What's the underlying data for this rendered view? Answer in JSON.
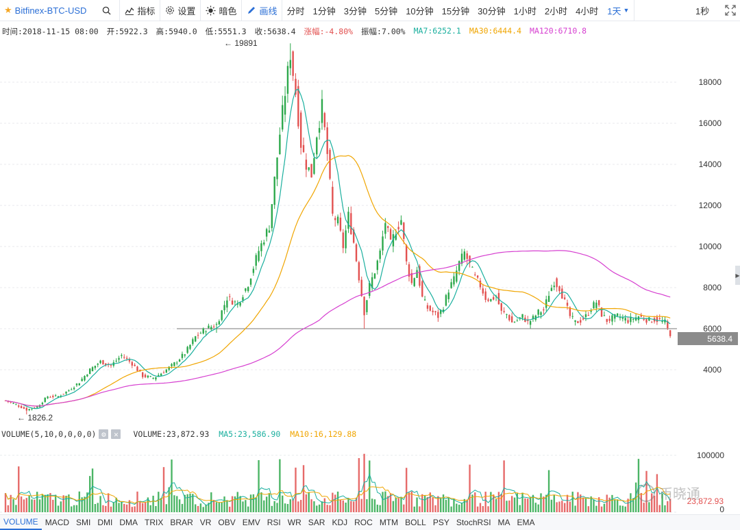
{
  "toolbar": {
    "symbol": "Bitfinex-BTC-USD",
    "indicators_label": "指标",
    "settings_label": "设置",
    "dark_label": "暗色",
    "drawing_label": "画线",
    "periods": [
      "分时",
      "1分钟",
      "3分钟",
      "5分钟",
      "10分钟",
      "15分钟",
      "30分钟",
      "1小时",
      "2小时",
      "4小时"
    ],
    "selected_period": "1天",
    "resolution": "1秒"
  },
  "info": {
    "time": "时间:2018-11-15 08:00",
    "open": "开:5922.3",
    "high": "高:5940.0",
    "low": "低:5551.3",
    "close": "收:5638.4",
    "change": "涨幅:-4.80%",
    "amplitude": "振幅:7.00%",
    "ma7": "MA7:6252.1",
    "ma30": "MA30:6444.4",
    "ma120": "MA120:6710.8"
  },
  "price_axis": {
    "ticks": [
      "18000",
      "16000",
      "14000",
      "12000",
      "10000",
      "8000",
      "6000",
      "4000"
    ],
    "current_price": "5638.4",
    "high_marker": "19891",
    "low_marker": "1826.2"
  },
  "volume": {
    "indicator": "VOLUME(5,10,0,0,0,0)",
    "value": "VOLUME:23,872.93",
    "ma5": "MA5:23,586.90",
    "ma10": "MA10:16,129.88",
    "ticks": [
      "100000",
      "0"
    ],
    "current_value": "23,872.93"
  },
  "indicator_tabs": [
    "VOLUME",
    "MACD",
    "SMI",
    "DMI",
    "DMA",
    "TRIX",
    "BRAR",
    "VR",
    "OBV",
    "EMV",
    "RSI",
    "WR",
    "SAR",
    "KDJ",
    "ROC",
    "MTM",
    "BOLL",
    "PSY",
    "StochRSI",
    "MA",
    "EMA"
  ],
  "watermark": "币晓通",
  "colors": {
    "up": "#2ba84a",
    "down": "#e2504f",
    "ma7": "#1aaf9e",
    "ma30": "#f0a500",
    "ma120": "#d63fd0",
    "accent": "#2b6fd6"
  },
  "chart_data": {
    "type": "candlestick",
    "title": "Bitfinex-BTC-USD",
    "xlabel": "",
    "ylabel": "",
    "ylim": [
      1500,
      20000
    ],
    "interval": "1天",
    "series": [
      {
        "name": "MA7",
        "key": "ma7"
      },
      {
        "name": "MA30",
        "key": "ma30"
      },
      {
        "name": "MA120",
        "key": "ma120"
      }
    ],
    "price_path": [
      [
        0,
        2500
      ],
      [
        4,
        2300
      ],
      [
        8,
        2050
      ],
      [
        12,
        2200
      ],
      [
        16,
        2700
      ],
      [
        20,
        2700
      ],
      [
        24,
        3000
      ],
      [
        28,
        3400
      ],
      [
        32,
        4000
      ],
      [
        36,
        4400
      ],
      [
        40,
        4200
      ],
      [
        44,
        4700
      ],
      [
        48,
        4300
      ],
      [
        52,
        3700
      ],
      [
        56,
        3600
      ],
      [
        60,
        3900
      ],
      [
        64,
        4300
      ],
      [
        68,
        4800
      ],
      [
        72,
        5600
      ],
      [
        76,
        6000
      ],
      [
        80,
        6200
      ],
      [
        84,
        7500
      ],
      [
        88,
        7200
      ],
      [
        92,
        8200
      ],
      [
        96,
        9800
      ],
      [
        100,
        11000
      ],
      [
        104,
        15500
      ],
      [
        106,
        17500
      ],
      [
        108,
        19400
      ],
      [
        110,
        17500
      ],
      [
        112,
        15000
      ],
      [
        114,
        14000
      ],
      [
        116,
        13500
      ],
      [
        118,
        15500
      ],
      [
        120,
        16800
      ],
      [
        122,
        14500
      ],
      [
        124,
        11500
      ],
      [
        126,
        11200
      ],
      [
        128,
        10000
      ],
      [
        130,
        11500
      ],
      [
        132,
        10200
      ],
      [
        134,
        8500
      ],
      [
        136,
        6800
      ],
      [
        138,
        8100
      ],
      [
        140,
        8800
      ],
      [
        142,
        9700
      ],
      [
        144,
        11200
      ],
      [
        146,
        10100
      ],
      [
        148,
        10800
      ],
      [
        150,
        11300
      ],
      [
        152,
        9200
      ],
      [
        154,
        8200
      ],
      [
        156,
        8900
      ],
      [
        158,
        7500
      ],
      [
        160,
        7000
      ],
      [
        162,
        6800
      ],
      [
        164,
        6600
      ],
      [
        166,
        7100
      ],
      [
        168,
        7900
      ],
      [
        170,
        8400
      ],
      [
        172,
        9200
      ],
      [
        174,
        9700
      ],
      [
        176,
        9100
      ],
      [
        178,
        8500
      ],
      [
        180,
        8100
      ],
      [
        182,
        7500
      ],
      [
        184,
        7400
      ],
      [
        186,
        7600
      ],
      [
        188,
        6800
      ],
      [
        190,
        6700
      ],
      [
        192,
        6300
      ],
      [
        194,
        6400
      ],
      [
        196,
        6600
      ],
      [
        198,
        6300
      ],
      [
        200,
        6500
      ],
      [
        202,
        6800
      ],
      [
        204,
        6900
      ],
      [
        206,
        7700
      ],
      [
        208,
        8300
      ],
      [
        210,
        8000
      ],
      [
        212,
        7300
      ],
      [
        214,
        6600
      ],
      [
        216,
        6300
      ],
      [
        218,
        6400
      ],
      [
        220,
        6600
      ],
      [
        222,
        7000
      ],
      [
        224,
        7300
      ],
      [
        226,
        6700
      ],
      [
        228,
        6400
      ],
      [
        230,
        6500
      ],
      [
        232,
        6600
      ],
      [
        234,
        6500
      ],
      [
        236,
        6400
      ],
      [
        238,
        6500
      ],
      [
        240,
        6600
      ],
      [
        242,
        6500
      ],
      [
        244,
        6400
      ],
      [
        246,
        6450
      ],
      [
        248,
        6400
      ],
      [
        250,
        6300
      ],
      [
        252,
        5638
      ]
    ],
    "volume_range": [
      0,
      130000
    ],
    "volume_typical": 23000
  }
}
